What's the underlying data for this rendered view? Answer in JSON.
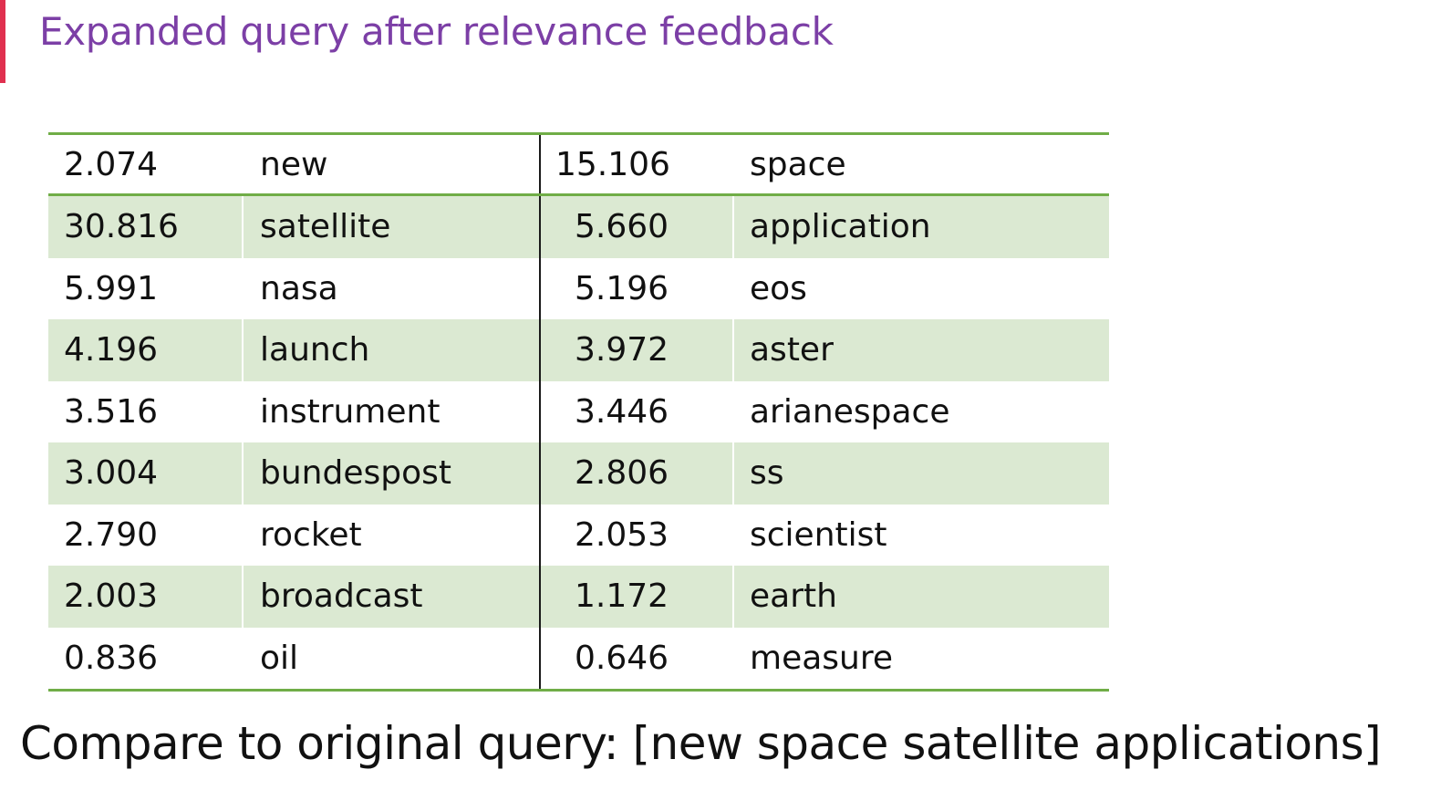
{
  "slide": {
    "title": "Expanded query after relevance feedback",
    "footer_text": "Compare to original query: [new space satellite applications]",
    "accent_color": "#e0304f",
    "title_color": "#7c3fa6",
    "rule_color": "#70ad47",
    "band_color": "#dbe9d2"
  },
  "table": {
    "header": {
      "left_weight": "2.074",
      "left_term": "new",
      "right_weight": "15.106",
      "right_term": "space"
    },
    "rows": [
      {
        "left_weight": "30.816",
        "left_term": "satellite",
        "right_weight": "5.660",
        "right_term": "application"
      },
      {
        "left_weight": "5.991",
        "left_term": "nasa",
        "right_weight": "5.196",
        "right_term": "eos"
      },
      {
        "left_weight": "4.196",
        "left_term": "launch",
        "right_weight": "3.972",
        "right_term": "aster"
      },
      {
        "left_weight": "3.516",
        "left_term": "instrument",
        "right_weight": "3.446",
        "right_term": "arianespace"
      },
      {
        "left_weight": "3.004",
        "left_term": "bundespost",
        "right_weight": "2.806",
        "right_term": "ss"
      },
      {
        "left_weight": "2.790",
        "left_term": "rocket",
        "right_weight": "2.053",
        "right_term": "scientist"
      },
      {
        "left_weight": "2.003",
        "left_term": "broadcast",
        "right_weight": "1.172",
        "right_term": "earth"
      },
      {
        "left_weight": "0.836",
        "left_term": "oil",
        "right_weight": "0.646",
        "right_term": "measure"
      }
    ]
  }
}
